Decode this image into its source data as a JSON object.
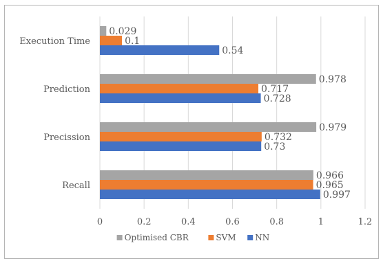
{
  "chart_data": {
    "type": "bar",
    "orientation": "horizontal",
    "categories": [
      "Recall",
      "Precission",
      "Prediction",
      "Execution Time"
    ],
    "series": [
      {
        "name": "NN",
        "color": "#4472C4",
        "values": [
          0.997,
          0.73,
          0.728,
          0.54
        ],
        "labels": [
          "0.997",
          "0.73",
          "0.728",
          "0.54"
        ]
      },
      {
        "name": "SVM",
        "color": "#ED7D31",
        "values": [
          0.965,
          0.732,
          0.717,
          0.1
        ],
        "labels": [
          "0.965",
          "0.732",
          "0.717",
          "0.1"
        ]
      },
      {
        "name": "Optimised CBR",
        "color": "#A5A5A5",
        "values": [
          0.966,
          0.979,
          0.978,
          0.029
        ],
        "labels": [
          "0.966",
          "0.979",
          "0.978",
          "0.029"
        ]
      }
    ],
    "xlim": [
      0,
      1.2
    ],
    "xticks": [
      "0",
      "0.2",
      "0.4",
      "0.6",
      "0.8",
      "1",
      "1.2"
    ],
    "grid": true,
    "legend_position": "bottom",
    "legend_order": [
      "Optimised CBR",
      "SVM",
      "NN"
    ]
  }
}
